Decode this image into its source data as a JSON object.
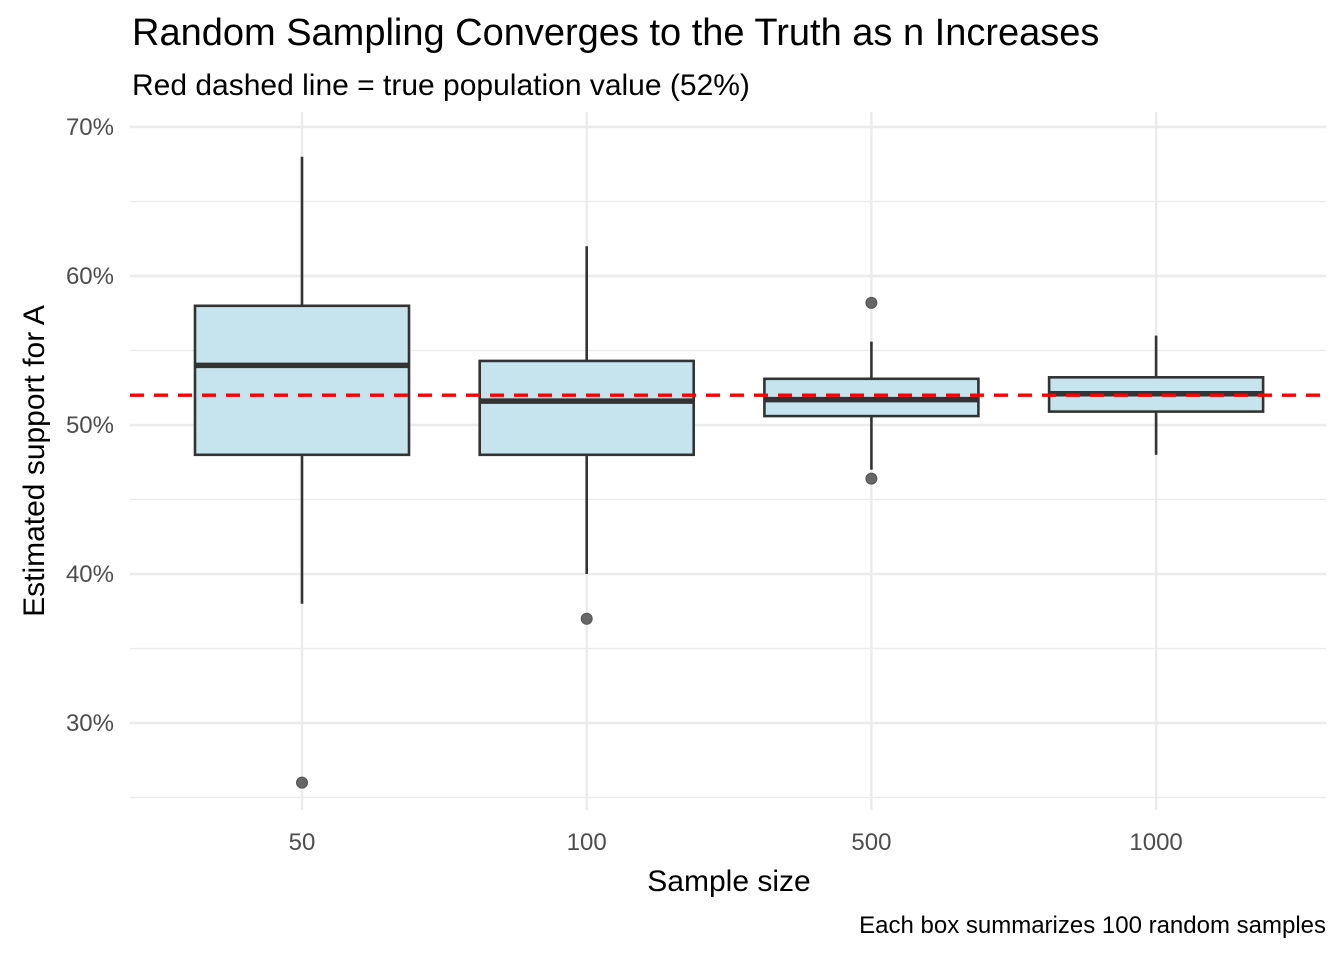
{
  "chart_data": {
    "type": "boxplot",
    "title": "Random Sampling Converges to the Truth as n Increases",
    "subtitle": "Red dashed line = true population value (52%)",
    "caption": "Each box summarizes 100 random samples",
    "xlabel": "Sample size",
    "ylabel": "Estimated support for A",
    "categories": [
      "50",
      "100",
      "500",
      "1000"
    ],
    "ylim": [
      24.5,
      70
    ],
    "yticks": [
      30,
      40,
      50,
      60,
      70
    ],
    "ytick_labels": [
      "30%",
      "40%",
      "50%",
      "60%",
      "70%"
    ],
    "reference_line": {
      "value": 52,
      "style": "dashed",
      "color": "#ff0000"
    },
    "boxes": [
      {
        "category": "50",
        "whisker_low": 38,
        "q1": 48,
        "median": 54,
        "q3": 58,
        "whisker_high": 68,
        "outliers": [
          26
        ]
      },
      {
        "category": "100",
        "whisker_low": 40,
        "q1": 48,
        "median": 51.6,
        "q3": 54.3,
        "whisker_high": 62,
        "outliers": [
          37
        ]
      },
      {
        "category": "500",
        "whisker_low": 47,
        "q1": 50.6,
        "median": 51.7,
        "q3": 53.1,
        "whisker_high": 55.6,
        "outliers": [
          46.4,
          58.2
        ]
      },
      {
        "category": "1000",
        "whisker_low": 48,
        "q1": 50.9,
        "median": 52.1,
        "q3": 53.2,
        "whisker_high": 56,
        "outliers": []
      }
    ],
    "colors": {
      "box_fill": "#c5e4ee",
      "box_stroke": "#333333",
      "outlier": "#666666",
      "grid": "#ebebeb",
      "reference": "#ff0000"
    },
    "grid": true,
    "legend": "none"
  }
}
